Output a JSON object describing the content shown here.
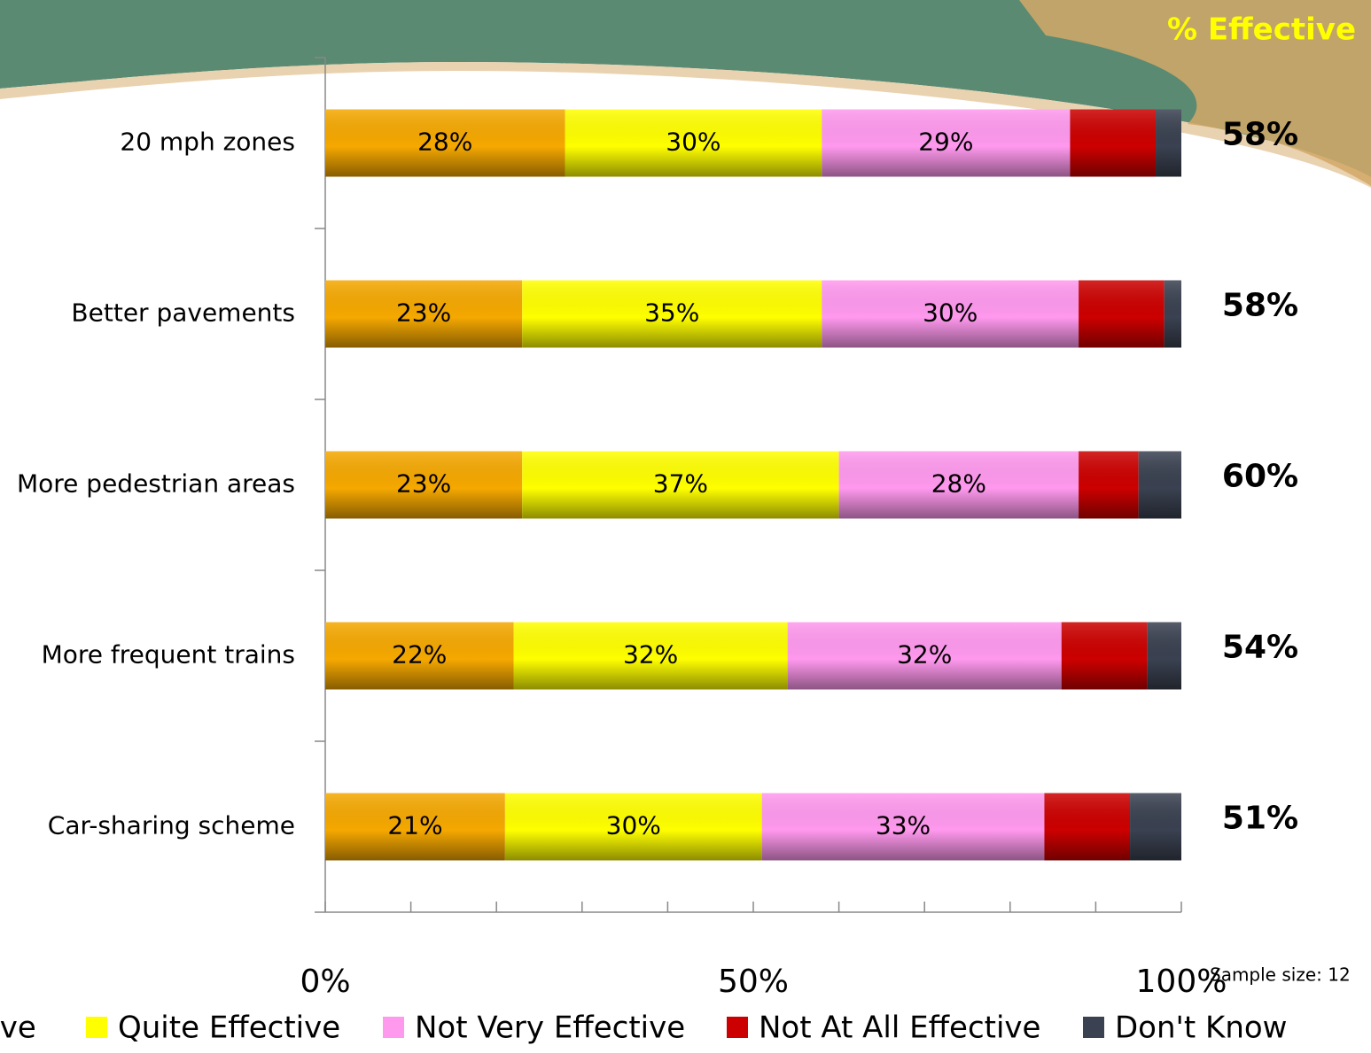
{
  "chart_data": {
    "type": "stacked_bar_horizontal",
    "categories": [
      "20 mph zones",
      "Better pavements",
      "More pedestrian areas",
      "More frequent trains",
      "Car-sharing scheme"
    ],
    "series": [
      {
        "name": "Very Effective",
        "color": "#f5a800",
        "values": [
          28,
          23,
          23,
          22,
          21
        ],
        "value_labels": [
          "28%",
          "23%",
          "23%",
          "22%",
          "21%"
        ]
      },
      {
        "name": "Quite Effective",
        "color": "#ffff00",
        "values": [
          30,
          35,
          37,
          32,
          30
        ],
        "value_labels": [
          "30%",
          "35%",
          "37%",
          "32%",
          "30%"
        ]
      },
      {
        "name": "Not Very Effective",
        "color": "#ff99ee",
        "values": [
          29,
          30,
          28,
          32,
          33
        ],
        "value_labels": [
          "29%",
          "30%",
          "28%",
          "32%",
          "33%"
        ]
      },
      {
        "name": "Not At All Effective",
        "color": "#cc0000",
        "values": [
          10,
          10,
          7,
          10,
          10
        ]
      },
      {
        "name": "Don't Know",
        "color": "#3a4150",
        "values": [
          3,
          2,
          5,
          4,
          6
        ]
      }
    ],
    "totals": {
      "title": "% Effective",
      "values": [
        58,
        58,
        60,
        54,
        51
      ],
      "value_labels": [
        "58%",
        "58%",
        "60%",
        "54%",
        "51%"
      ]
    },
    "xlim": [
      0,
      100
    ],
    "xticks": [
      {
        "value": 0,
        "label": "0%"
      },
      {
        "value": 50,
        "label": "50%"
      },
      {
        "value": 100,
        "label": "100%"
      }
    ],
    "xticks_minor": [
      0,
      10,
      20,
      30,
      40,
      50,
      60,
      70,
      80,
      90,
      100
    ],
    "note": "Sample size: 12"
  }
}
